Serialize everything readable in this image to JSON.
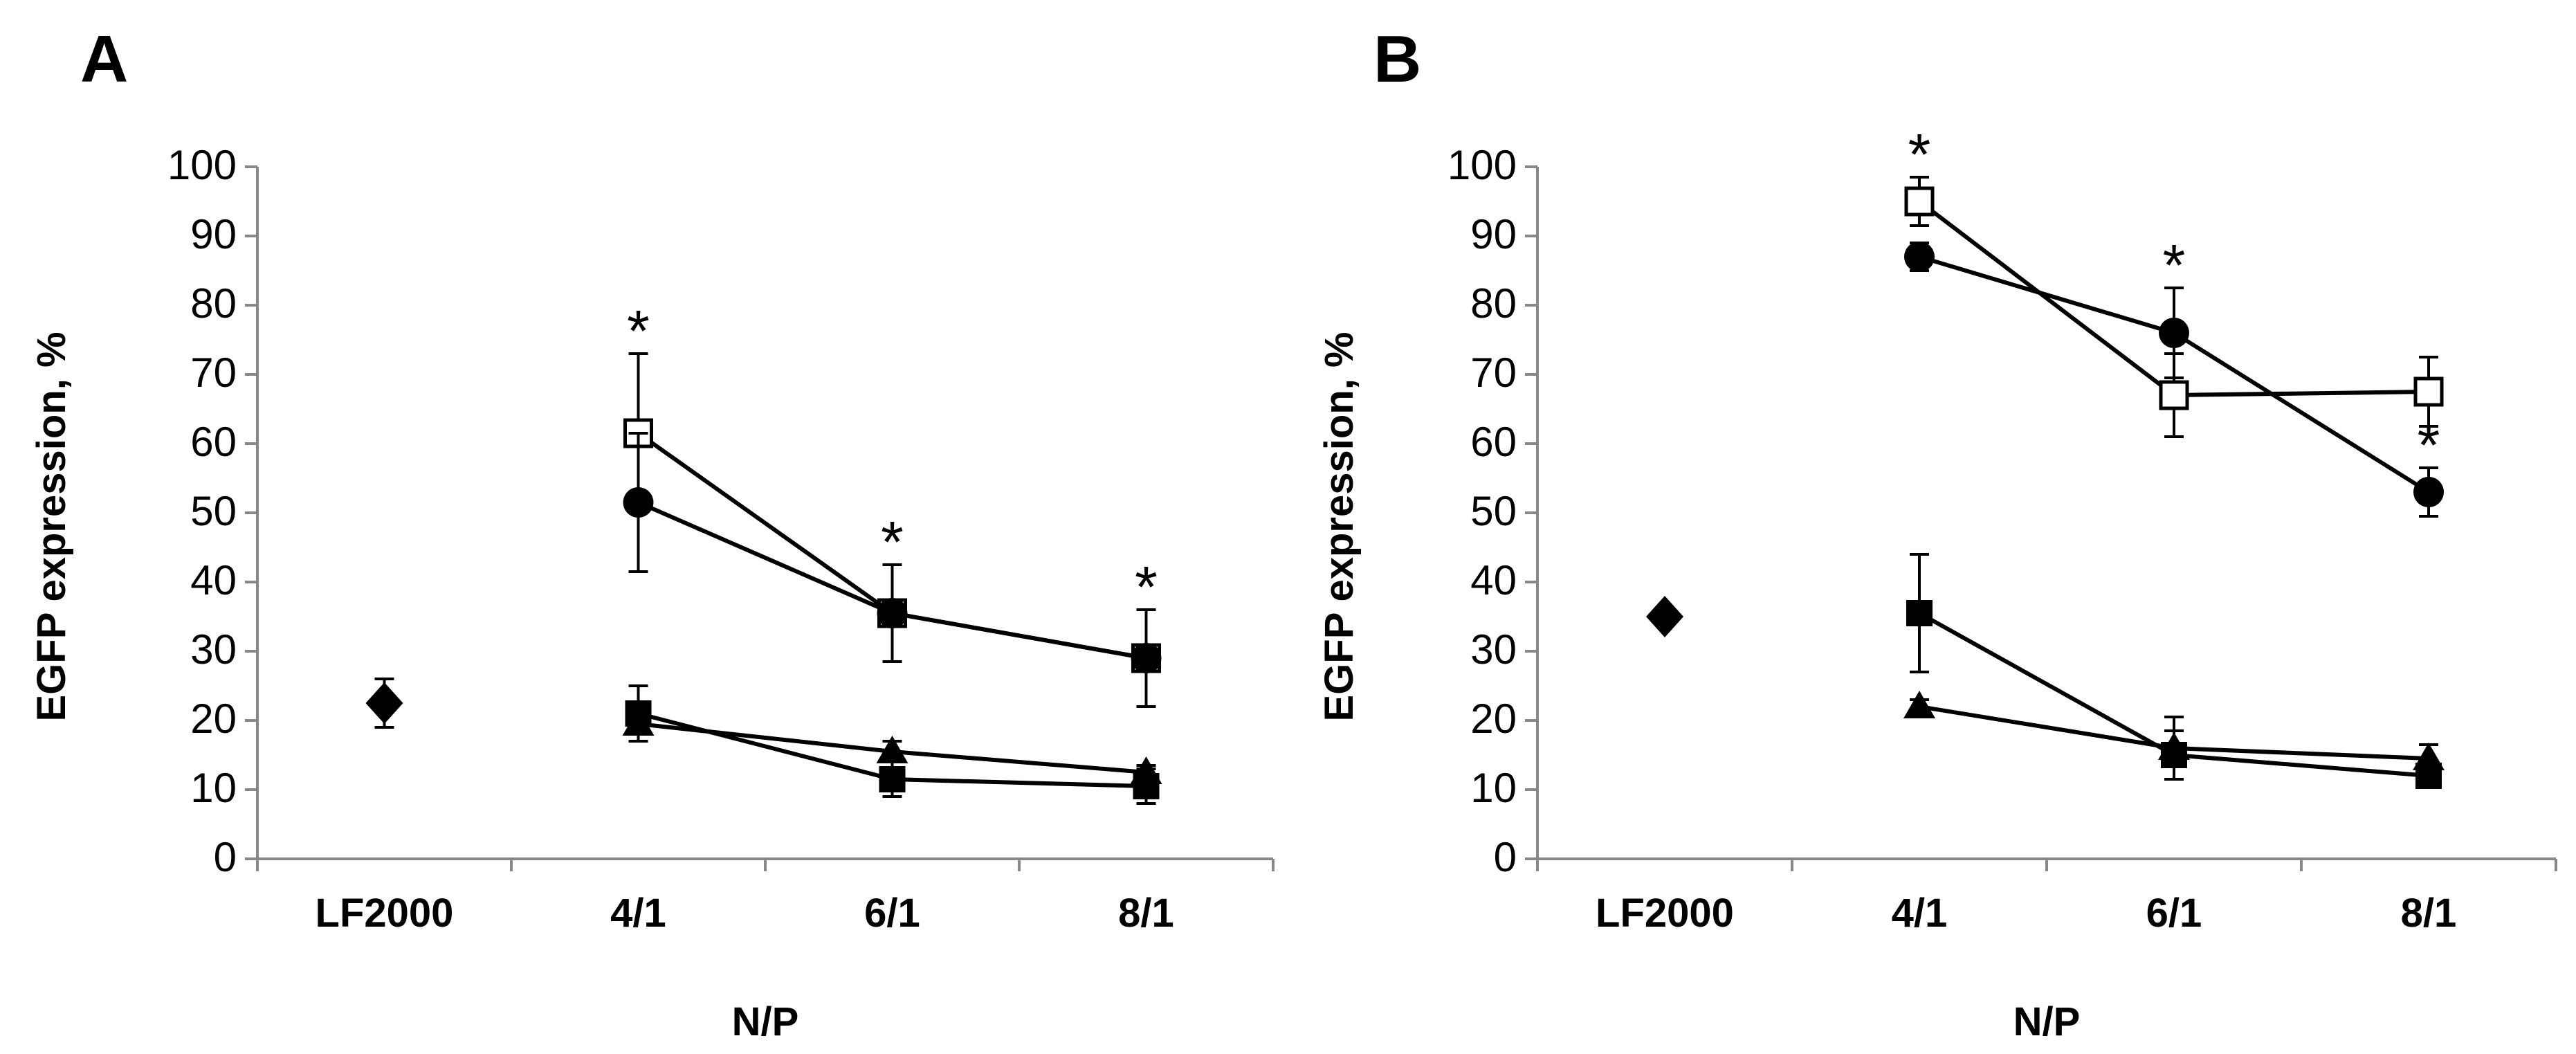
{
  "chart_data": [
    {
      "panel": "A",
      "type": "line",
      "categories": [
        "LF2000",
        "4/1",
        "6/1",
        "8/1"
      ],
      "xlabel": "N/P",
      "ylabel": "EGFP expression, %",
      "ylim": [
        0,
        100
      ],
      "yticks": [
        "0",
        "10",
        "20",
        "30",
        "40",
        "50",
        "60",
        "70",
        "80",
        "90",
        "100"
      ],
      "lf2000": {
        "marker": "diamond",
        "value": 22.5,
        "err": 3.5
      },
      "series": [
        {
          "marker": "open-square",
          "values": [
            null,
            61.5,
            35.5,
            29
          ],
          "errors": [
            null,
            11.5,
            7,
            7
          ],
          "stars": [
            null,
            "*",
            "*",
            "*"
          ]
        },
        {
          "marker": "filled-circle",
          "values": [
            null,
            51.5,
            35.5,
            29
          ],
          "errors": [
            null,
            10,
            0,
            0
          ],
          "stars": [
            null,
            "",
            "",
            ""
          ]
        },
        {
          "marker": "filled-square",
          "values": [
            null,
            21,
            11.5,
            10.5
          ],
          "errors": [
            null,
            4,
            2.5,
            2.5
          ],
          "stars": [
            null,
            "",
            "",
            ""
          ]
        },
        {
          "marker": "filled-triangle",
          "values": [
            null,
            19.5,
            15.5,
            12.5
          ],
          "errors": [
            null,
            1,
            1.5,
            1
          ],
          "stars": [
            null,
            "",
            "",
            ""
          ]
        }
      ]
    },
    {
      "panel": "B",
      "type": "line",
      "categories": [
        "LF2000",
        "4/1",
        "6/1",
        "8/1"
      ],
      "xlabel": "N/P",
      "ylabel": "EGFP expression, %",
      "ylim": [
        0,
        100
      ],
      "yticks": [
        "0",
        "10",
        "20",
        "30",
        "40",
        "50",
        "60",
        "70",
        "80",
        "90",
        "100"
      ],
      "lf2000": {
        "marker": "diamond",
        "value": 35,
        "err": 0
      },
      "series": [
        {
          "marker": "open-square",
          "values": [
            null,
            95,
            67,
            67.5
          ],
          "errors": [
            null,
            3.5,
            6,
            5
          ],
          "stars": [
            null,
            "*",
            "",
            ""
          ]
        },
        {
          "marker": "filled-circle",
          "values": [
            null,
            87,
            76,
            53
          ],
          "errors": [
            null,
            2,
            6.5,
            3.5
          ],
          "stars": [
            null,
            "",
            "*",
            "*"
          ]
        },
        {
          "marker": "filled-square",
          "values": [
            null,
            35.5,
            15,
            12
          ],
          "errors": [
            null,
            8.5,
            3.5,
            1
          ],
          "stars": [
            null,
            "",
            "",
            ""
          ]
        },
        {
          "marker": "filled-triangle",
          "values": [
            null,
            22,
            16,
            14.5
          ],
          "errors": [
            null,
            1,
            4.5,
            2
          ],
          "stars": [
            null,
            "",
            "",
            ""
          ]
        }
      ]
    }
  ]
}
